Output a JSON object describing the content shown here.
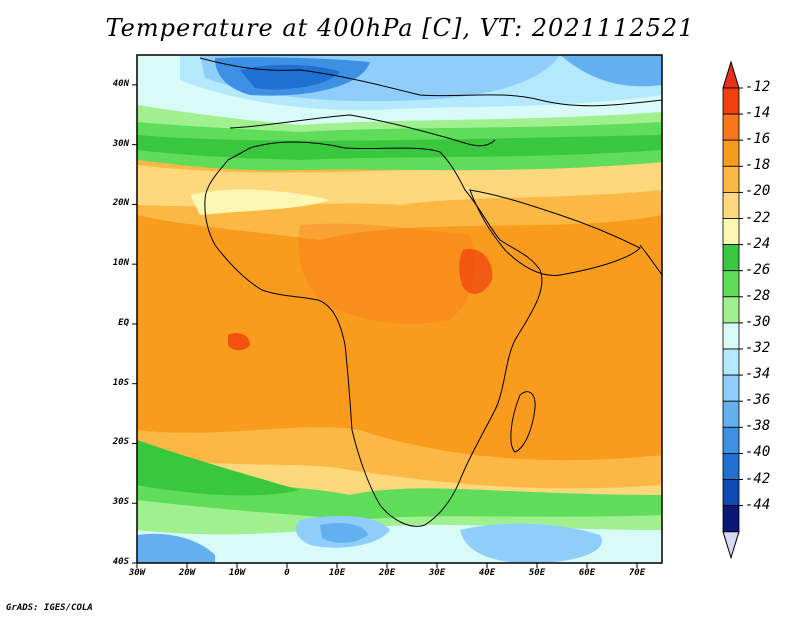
{
  "title": "Temperature at 400hPa [C], VT: 2021112521",
  "credit": "GrADS: IGES/COLA",
  "map": {
    "lon_range": [
      -30,
      75
    ],
    "lat_range": [
      -40,
      45
    ],
    "lat_ticks": [
      "40N",
      "30N",
      "20N",
      "10N",
      "EQ",
      "10S",
      "20S",
      "30S",
      "40S"
    ],
    "lon_ticks": [
      "30W",
      "20W",
      "10W",
      "0",
      "10E",
      "20E",
      "30E",
      "40E",
      "50E",
      "60E",
      "70E"
    ]
  },
  "colorbar": {
    "labels": [
      "-12",
      "-14",
      "-16",
      "-18",
      "-20",
      "-22",
      "-24",
      "-26",
      "-28",
      "-30",
      "-32",
      "-34",
      "-36",
      "-38",
      "-40",
      "-42",
      "-44"
    ],
    "colors": [
      "#f0400e",
      "#f9761a",
      "#f99c1e",
      "#fbb844",
      "#fdd87c",
      "#fdf7b4",
      "#39c73d",
      "#5fdc5a",
      "#a0f090",
      "#d8fbf8",
      "#b4e8fc",
      "#8fcefa",
      "#62b0f0",
      "#3e90e4",
      "#2070d4",
      "#0f4ab4",
      "#0a1878"
    ],
    "top_color": "#e8301a",
    "bottom_color": "#d8d8f8"
  }
}
